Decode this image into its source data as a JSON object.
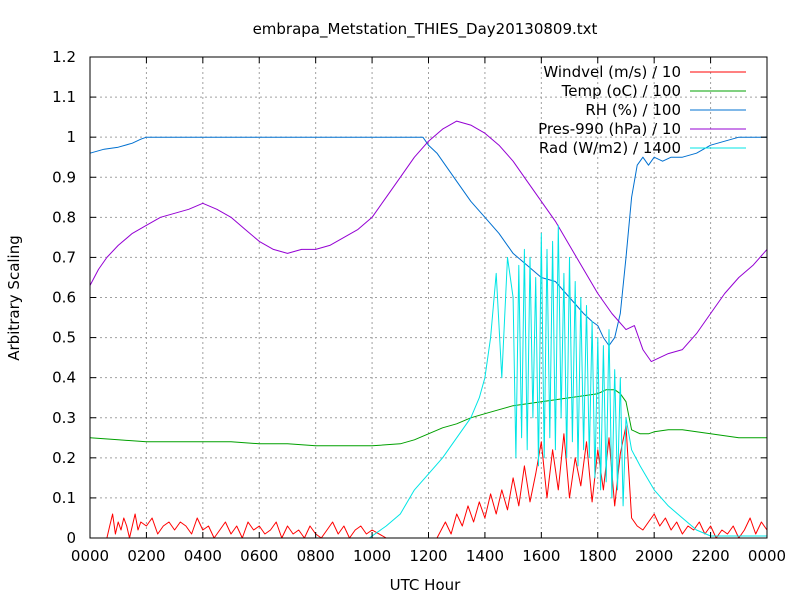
{
  "chart_data": {
    "type": "line",
    "title": "embrapa_Metstation_THIES_Day20130809.txt",
    "xlabel": "UTC Hour",
    "ylabel": "Arbitrary Scaling",
    "xlim": [
      0,
      24
    ],
    "ylim": [
      0,
      1.2
    ],
    "grid": true,
    "legend_position": "top-right",
    "x_ticks": [
      {
        "value": 0,
        "label": "0000"
      },
      {
        "value": 2,
        "label": "0200"
      },
      {
        "value": 4,
        "label": "0400"
      },
      {
        "value": 6,
        "label": "0600"
      },
      {
        "value": 8,
        "label": "0800"
      },
      {
        "value": 10,
        "label": "1000"
      },
      {
        "value": 12,
        "label": "1200"
      },
      {
        "value": 14,
        "label": "1400"
      },
      {
        "value": 16,
        "label": "1600"
      },
      {
        "value": 18,
        "label": "1800"
      },
      {
        "value": 20,
        "label": "2000"
      },
      {
        "value": 22,
        "label": "2200"
      },
      {
        "value": 24,
        "label": "0000"
      }
    ],
    "y_ticks": [
      {
        "value": 0,
        "label": "0"
      },
      {
        "value": 0.1,
        "label": "0.1"
      },
      {
        "value": 0.2,
        "label": "0.2"
      },
      {
        "value": 0.3,
        "label": "0.3"
      },
      {
        "value": 0.4,
        "label": "0.4"
      },
      {
        "value": 0.5,
        "label": "0.5"
      },
      {
        "value": 0.6,
        "label": "0.6"
      },
      {
        "value": 0.7,
        "label": "0.7"
      },
      {
        "value": 0.8,
        "label": "0.8"
      },
      {
        "value": 0.9,
        "label": "0.9"
      },
      {
        "value": 1.0,
        "label": "1"
      },
      {
        "value": 1.1,
        "label": "1.1"
      },
      {
        "value": 1.2,
        "label": "1.2"
      }
    ],
    "series": [
      {
        "name": "Windvel (m/s) / 10",
        "color": "#ff0000",
        "x": [
          0,
          0.6,
          0.7,
          0.8,
          0.9,
          1.0,
          1.1,
          1.2,
          1.3,
          1.4,
          1.5,
          1.6,
          1.7,
          1.8,
          2.0,
          2.2,
          2.4,
          2.6,
          2.8,
          3.0,
          3.2,
          3.4,
          3.6,
          3.8,
          4.0,
          4.2,
          4.4,
          4.6,
          4.8,
          5.0,
          5.2,
          5.4,
          5.6,
          5.8,
          6.0,
          6.2,
          6.4,
          6.6,
          6.8,
          7.0,
          7.2,
          7.4,
          7.6,
          7.8,
          8.0,
          8.2,
          8.4,
          8.6,
          8.8,
          9.0,
          9.2,
          9.4,
          9.6,
          9.8,
          10.0,
          10.5,
          11.0,
          11.5,
          12.0,
          12.3,
          12.6,
          12.8,
          13.0,
          13.2,
          13.4,
          13.6,
          13.8,
          14.0,
          14.2,
          14.4,
          14.6,
          14.8,
          15.0,
          15.2,
          15.4,
          15.6,
          15.8,
          16.0,
          16.2,
          16.4,
          16.6,
          16.8,
          17.0,
          17.2,
          17.4,
          17.6,
          17.8,
          18.0,
          18.2,
          18.4,
          18.6,
          18.8,
          19.0,
          19.2,
          19.4,
          19.6,
          19.8,
          20.0,
          20.2,
          20.4,
          20.6,
          20.8,
          21.0,
          21.2,
          21.4,
          21.6,
          21.8,
          22.0,
          22.2,
          22.4,
          22.6,
          22.8,
          23.0,
          23.2,
          23.4,
          23.6,
          23.8,
          24.0
        ],
        "y": [
          0,
          0,
          0.03,
          0.06,
          0.01,
          0.04,
          0.02,
          0.05,
          0.03,
          0.0,
          0.03,
          0.06,
          0.02,
          0.04,
          0.03,
          0.05,
          0.01,
          0.03,
          0.04,
          0.02,
          0.04,
          0.03,
          0.01,
          0.05,
          0.02,
          0.03,
          0.0,
          0.02,
          0.04,
          0.01,
          0.03,
          0.0,
          0.04,
          0.02,
          0.03,
          0.01,
          0.02,
          0.04,
          0.0,
          0.03,
          0.01,
          0.02,
          0.0,
          0.03,
          0.01,
          0.0,
          0.02,
          0.04,
          0.01,
          0.03,
          0.0,
          0.02,
          0.03,
          0.01,
          0.02,
          0.0,
          0.0,
          0.0,
          0.0,
          0.0,
          0.04,
          0.01,
          0.06,
          0.03,
          0.08,
          0.04,
          0.09,
          0.05,
          0.11,
          0.06,
          0.12,
          0.07,
          0.15,
          0.08,
          0.18,
          0.09,
          0.16,
          0.24,
          0.1,
          0.22,
          0.12,
          0.26,
          0.1,
          0.2,
          0.13,
          0.24,
          0.09,
          0.22,
          0.12,
          0.25,
          0.08,
          0.21,
          0.28,
          0.05,
          0.03,
          0.02,
          0.04,
          0.06,
          0.03,
          0.05,
          0.02,
          0.04,
          0.01,
          0.03,
          0.02,
          0.04,
          0.01,
          0.03,
          0.0,
          0.02,
          0.01,
          0.03,
          0.0,
          0.02,
          0.05,
          0.01,
          0.04,
          0.02
        ]
      },
      {
        "name": "Temp (oC) / 100",
        "color": "#00a000",
        "x": [
          0,
          1,
          2,
          3,
          4,
          5,
          6,
          7,
          8,
          9,
          10,
          11,
          11.5,
          12,
          12.5,
          13,
          13.5,
          14,
          14.5,
          15,
          15.5,
          16,
          16.5,
          17,
          17.5,
          18,
          18.3,
          18.6,
          18.8,
          19.0,
          19.2,
          19.5,
          19.8,
          20.0,
          20.5,
          21,
          21.5,
          22,
          22.5,
          23,
          23.5,
          24
        ],
        "y": [
          0.25,
          0.245,
          0.24,
          0.24,
          0.24,
          0.24,
          0.235,
          0.235,
          0.23,
          0.23,
          0.23,
          0.235,
          0.245,
          0.26,
          0.275,
          0.285,
          0.3,
          0.31,
          0.32,
          0.33,
          0.335,
          0.34,
          0.345,
          0.35,
          0.355,
          0.36,
          0.37,
          0.37,
          0.36,
          0.34,
          0.27,
          0.26,
          0.26,
          0.265,
          0.27,
          0.27,
          0.265,
          0.26,
          0.255,
          0.25,
          0.25,
          0.25
        ]
      },
      {
        "name": "RH (%) / 100",
        "color": "#0070d0",
        "x": [
          0,
          0.5,
          1.0,
          1.5,
          1.8,
          2.0,
          3,
          4,
          5,
          6,
          7,
          8,
          9,
          10,
          11,
          11.8,
          12.0,
          12.3,
          12.6,
          13.0,
          13.5,
          14.0,
          14.5,
          15.0,
          15.5,
          16.0,
          16.5,
          17.0,
          17.5,
          17.8,
          18.0,
          18.2,
          18.4,
          18.6,
          18.8,
          19.0,
          19.2,
          19.4,
          19.6,
          19.8,
          20.0,
          20.3,
          20.6,
          21.0,
          21.5,
          22.0,
          22.5,
          23.0,
          23.5,
          24.0
        ],
        "y": [
          0.96,
          0.97,
          0.975,
          0.985,
          0.995,
          1.0,
          1.0,
          1.0,
          1.0,
          1.0,
          1.0,
          1.0,
          1.0,
          1.0,
          1.0,
          1.0,
          0.98,
          0.96,
          0.93,
          0.89,
          0.84,
          0.8,
          0.76,
          0.71,
          0.68,
          0.65,
          0.64,
          0.6,
          0.56,
          0.54,
          0.53,
          0.5,
          0.48,
          0.5,
          0.56,
          0.7,
          0.85,
          0.93,
          0.95,
          0.93,
          0.95,
          0.94,
          0.95,
          0.95,
          0.96,
          0.98,
          0.99,
          1.0,
          1.0,
          1.0
        ]
      },
      {
        "name": "Pres-990 (hPa) / 10",
        "color": "#9400d3",
        "x": [
          0,
          0.3,
          0.6,
          1.0,
          1.5,
          2.0,
          2.5,
          3.0,
          3.5,
          4.0,
          4.5,
          5.0,
          5.5,
          6.0,
          6.5,
          7.0,
          7.5,
          8.0,
          8.5,
          9.0,
          9.5,
          10.0,
          10.5,
          11.0,
          11.5,
          12.0,
          12.5,
          13.0,
          13.5,
          14.0,
          14.5,
          15.0,
          15.5,
          16.0,
          16.5,
          17.0,
          17.5,
          18.0,
          18.5,
          19.0,
          19.3,
          19.6,
          19.9,
          20.2,
          20.5,
          21.0,
          21.5,
          22.0,
          22.5,
          23.0,
          23.5,
          24.0
        ],
        "y": [
          0.63,
          0.67,
          0.7,
          0.73,
          0.76,
          0.78,
          0.8,
          0.81,
          0.82,
          0.835,
          0.82,
          0.8,
          0.77,
          0.74,
          0.72,
          0.71,
          0.72,
          0.72,
          0.73,
          0.75,
          0.77,
          0.8,
          0.85,
          0.9,
          0.95,
          0.99,
          1.02,
          1.04,
          1.03,
          1.01,
          0.98,
          0.94,
          0.89,
          0.84,
          0.79,
          0.73,
          0.67,
          0.61,
          0.56,
          0.52,
          0.53,
          0.47,
          0.44,
          0.45,
          0.46,
          0.47,
          0.51,
          0.56,
          0.61,
          0.65,
          0.68,
          0.72
        ]
      },
      {
        "name": "Rad (W/m2) / 1400",
        "color": "#00e5e5",
        "x": [
          0,
          9.9,
          10.0,
          10.5,
          11.0,
          11.5,
          12.0,
          12.5,
          13.0,
          13.5,
          13.8,
          14.0,
          14.2,
          14.4,
          14.6,
          14.8,
          15.0,
          15.1,
          15.2,
          15.3,
          15.4,
          15.5,
          15.6,
          15.7,
          15.8,
          15.9,
          16.0,
          16.1,
          16.2,
          16.3,
          16.4,
          16.5,
          16.6,
          16.7,
          16.8,
          16.9,
          17.0,
          17.1,
          17.2,
          17.3,
          17.4,
          17.5,
          17.6,
          17.7,
          17.8,
          17.9,
          18.0,
          18.1,
          18.2,
          18.3,
          18.4,
          18.5,
          18.6,
          18.7,
          18.8,
          18.9,
          19.0,
          19.2,
          19.5,
          20.0,
          20.5,
          21.0,
          21.5,
          22.0,
          24.0
        ],
        "y": [
          0.0,
          0.0,
          0.005,
          0.03,
          0.06,
          0.12,
          0.16,
          0.2,
          0.25,
          0.3,
          0.35,
          0.4,
          0.5,
          0.66,
          0.4,
          0.7,
          0.6,
          0.2,
          0.68,
          0.25,
          0.72,
          0.22,
          0.7,
          0.3,
          0.65,
          0.18,
          0.76,
          0.2,
          0.72,
          0.25,
          0.74,
          0.22,
          0.78,
          0.3,
          0.66,
          0.2,
          0.7,
          0.24,
          0.64,
          0.18,
          0.6,
          0.22,
          0.58,
          0.2,
          0.54,
          0.15,
          0.5,
          0.12,
          0.48,
          0.14,
          0.52,
          0.1,
          0.42,
          0.12,
          0.4,
          0.08,
          0.3,
          0.22,
          0.18,
          0.12,
          0.08,
          0.05,
          0.02,
          0.005,
          0.005
        ]
      }
    ]
  }
}
